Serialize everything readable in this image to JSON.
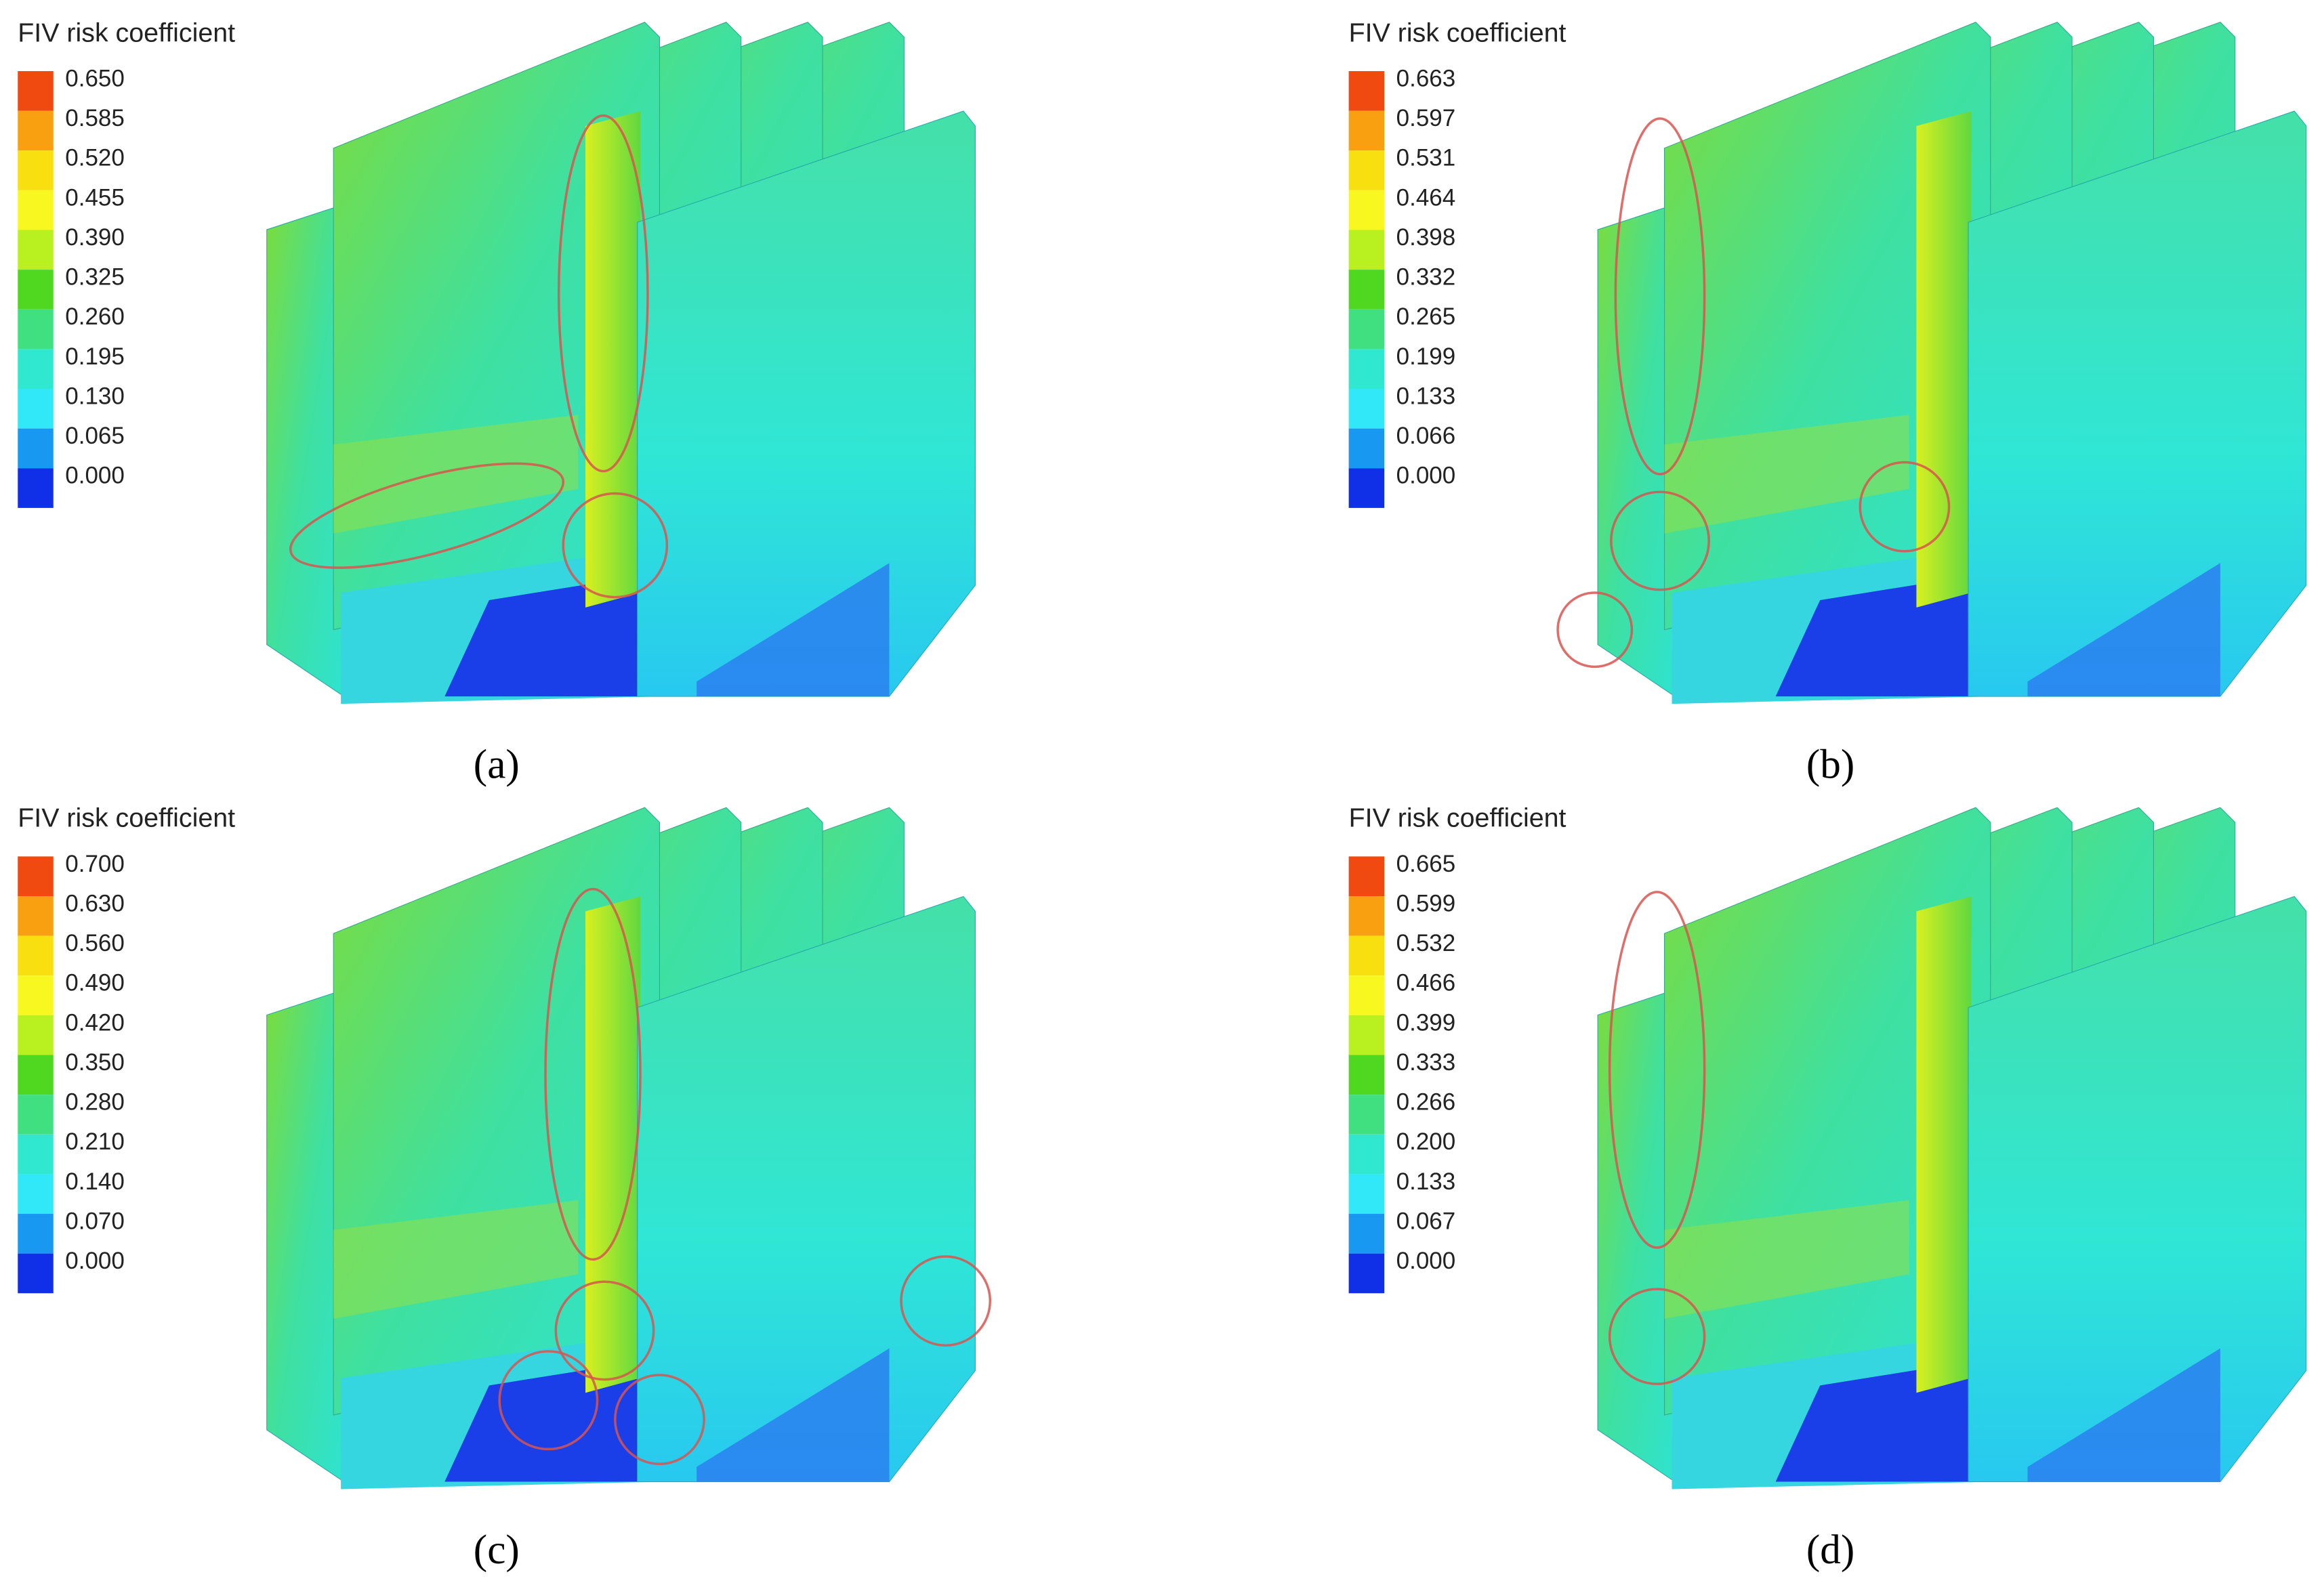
{
  "panels": [
    {
      "legend_title": "FIV risk coefficient",
      "legend_labels": [
        "0.650",
        "0.585",
        "0.520",
        "0.455",
        "0.390",
        "0.325",
        "0.260",
        "0.195",
        "0.130",
        "0.065",
        "0.000"
      ],
      "caption": "(a)"
    },
    {
      "legend_title": "FIV risk coefficient",
      "legend_labels": [
        "0.663",
        "0.597",
        "0.531",
        "0.464",
        "0.398",
        "0.332",
        "0.265",
        "0.199",
        "0.133",
        "0.066",
        "0.000"
      ],
      "caption": "(b)"
    },
    {
      "legend_title": "FIV risk coefficient",
      "legend_labels": [
        "0.700",
        "0.630",
        "0.560",
        "0.490",
        "0.420",
        "0.350",
        "0.280",
        "0.210",
        "0.140",
        "0.070",
        "0.000"
      ],
      "caption": "(c)"
    },
    {
      "legend_title": "FIV risk coefficient",
      "legend_labels": [
        "0.665",
        "0.599",
        "0.532",
        "0.466",
        "0.399",
        "0.333",
        "0.266",
        "0.200",
        "0.133",
        "0.067",
        "0.000"
      ],
      "caption": "(d)"
    }
  ]
}
